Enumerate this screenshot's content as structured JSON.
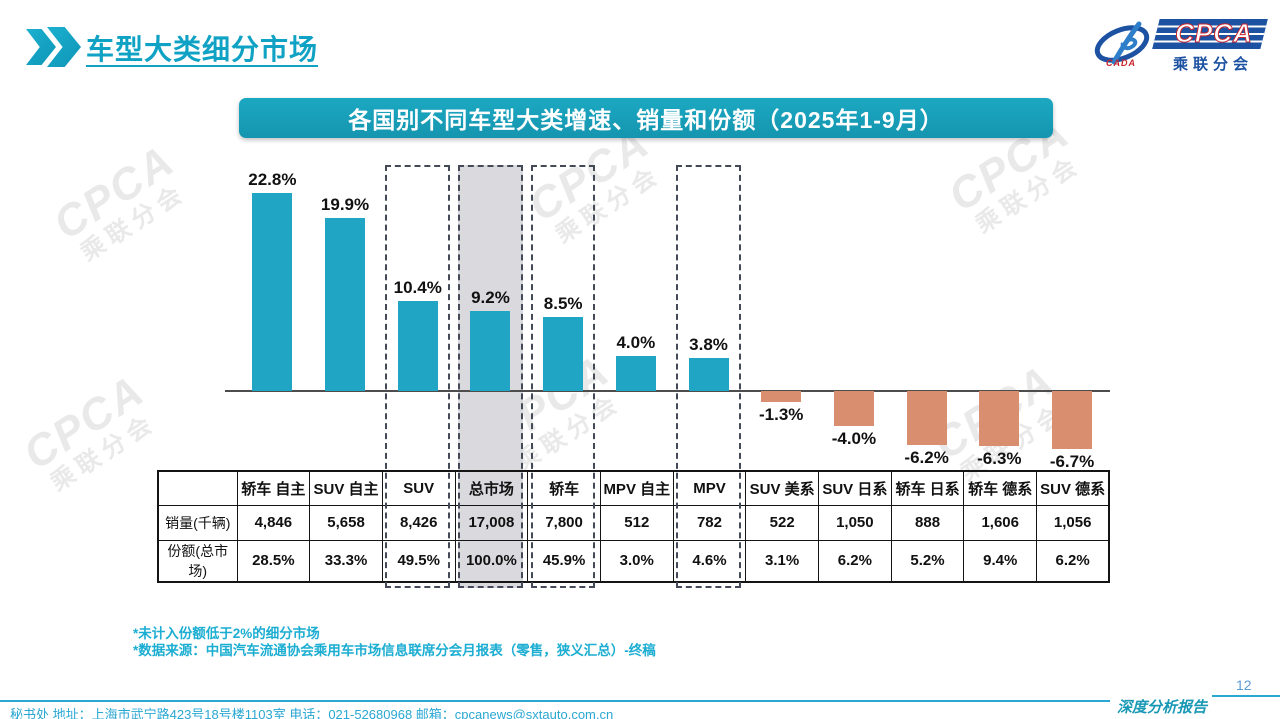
{
  "page": {
    "title": "车型大类细分市场",
    "page_number": "12",
    "report_label": "深度分析报告"
  },
  "logo": {
    "cpca": "CPCA",
    "org": "乘联分会",
    "cada": "CADA"
  },
  "watermark": {
    "line1": "CPCA",
    "line2": "乘联分会"
  },
  "chart_data": {
    "type": "bar",
    "title": "各国别不同车型大类增速、销量和份额（2025年1-9月）",
    "categories": [
      "轿车 自主",
      "SUV 自主",
      "SUV",
      "总市场",
      "轿车",
      "MPV 自主",
      "MPV",
      "SUV 美系",
      "SUV 日系",
      "轿车 日系",
      "轿车 德系",
      "SUV 德系"
    ],
    "series": [
      {
        "name": "增速",
        "values": [
          22.8,
          19.9,
          10.4,
          9.2,
          8.5,
          4.0,
          3.8,
          -1.3,
          -4.0,
          -6.2,
          -6.3,
          -6.7
        ],
        "labels": [
          "22.8%",
          "19.9%",
          "10.4%",
          "9.2%",
          "8.5%",
          "4.0%",
          "3.8%",
          "-1.3%",
          "-4.0%",
          "-6.2%",
          "-6.3%",
          "-6.7%"
        ]
      }
    ],
    "bar_colors": {
      "positive": "#21a5c4",
      "negative": "#d98e6f"
    },
    "highlight_boxes": [
      "SUV",
      "总市场",
      "轿车",
      "MPV"
    ],
    "highlight_fill": "总市场",
    "ylim": [
      -10,
      25
    ],
    "grid": false,
    "legend": false,
    "table": {
      "row_headers": [
        "销量(千辆)",
        "份额(总市场)"
      ],
      "rows": [
        [
          "4,846",
          "5,658",
          "8,426",
          "17,008",
          "7,800",
          "512",
          "782",
          "522",
          "1,050",
          "888",
          "1,606",
          "1,056"
        ],
        [
          "28.5%",
          "33.3%",
          "49.5%",
          "100.0%",
          "45.9%",
          "3.0%",
          "4.6%",
          "3.1%",
          "6.2%",
          "5.2%",
          "9.4%",
          "6.2%"
        ]
      ]
    }
  },
  "footnotes": [
    "*未计入份额低于2%的细分市场",
    "*数据来源：中国汽车流通协会乘用车市场信息联席分会月报表（零售，狭义汇总）-终稿"
  ],
  "footer": {
    "text": "秘书处  地址：上海市武宁路423号18号楼1103室 电话：021-52680968  邮箱：cpcanews@sxtauto.com.cn"
  }
}
